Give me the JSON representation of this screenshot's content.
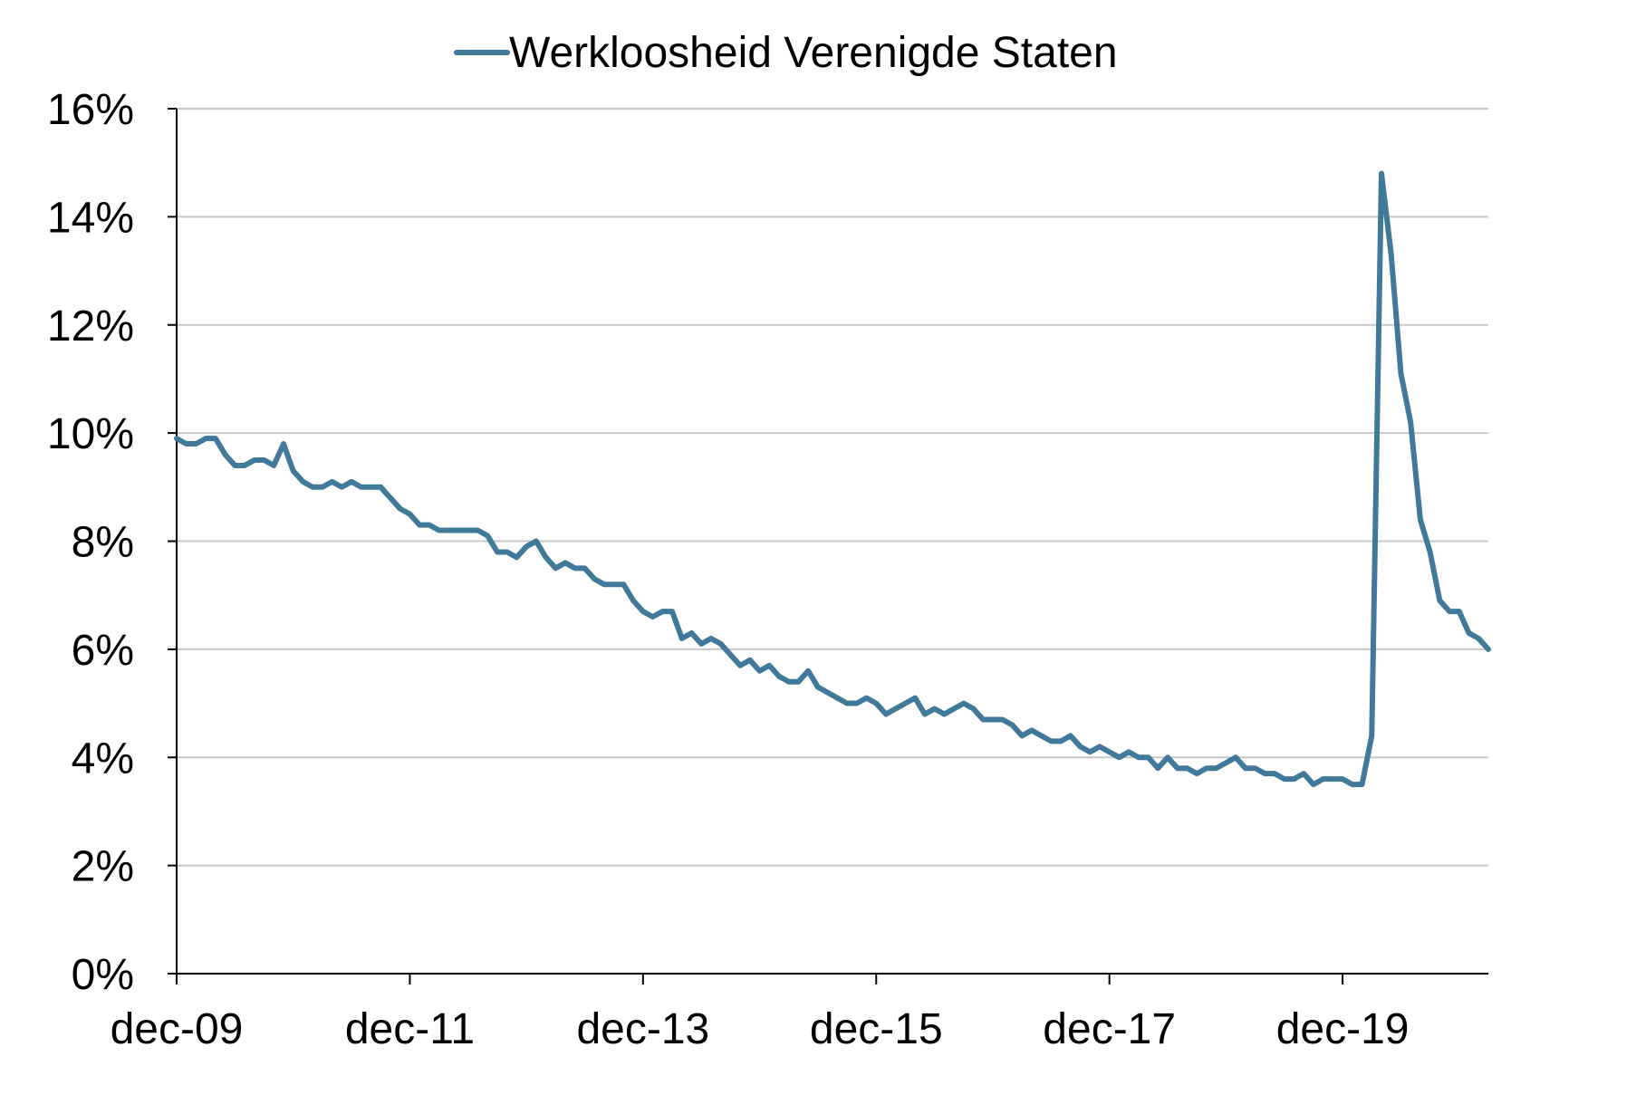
{
  "chart_data": {
    "type": "line",
    "title": "",
    "xlabel": "",
    "ylabel": "",
    "ylim": [
      0,
      16
    ],
    "y_ticks": [
      0,
      2,
      4,
      6,
      8,
      10,
      12,
      14,
      16
    ],
    "y_tick_labels": [
      "0%",
      "2%",
      "4%",
      "6%",
      "8%",
      "10%",
      "12%",
      "14%",
      "16%"
    ],
    "x_tick_labels": [
      "dec-09",
      "dec-11",
      "dec-13",
      "dec-15",
      "dec-17",
      "dec-19"
    ],
    "x_start": "dec-09",
    "x_end": "mei-21",
    "grid": true,
    "legend_position": "top-center",
    "series": [
      {
        "name": "Werkloosheid Verenigde Staten",
        "color": "#41799B",
        "values": [
          9.9,
          9.8,
          9.8,
          9.9,
          9.9,
          9.6,
          9.4,
          9.4,
          9.5,
          9.5,
          9.4,
          9.8,
          9.3,
          9.1,
          9.0,
          9.0,
          9.1,
          9.0,
          9.1,
          9.0,
          9.0,
          9.0,
          8.8,
          8.6,
          8.5,
          8.3,
          8.3,
          8.2,
          8.2,
          8.2,
          8.2,
          8.2,
          8.1,
          7.8,
          7.8,
          7.7,
          7.9,
          8.0,
          7.7,
          7.5,
          7.6,
          7.5,
          7.5,
          7.3,
          7.2,
          7.2,
          7.2,
          6.9,
          6.7,
          6.6,
          6.7,
          6.7,
          6.2,
          6.3,
          6.1,
          6.2,
          6.1,
          5.9,
          5.7,
          5.8,
          5.6,
          5.7,
          5.5,
          5.4,
          5.4,
          5.6,
          5.3,
          5.2,
          5.1,
          5.0,
          5.0,
          5.1,
          5.0,
          4.8,
          4.9,
          5.0,
          5.1,
          4.8,
          4.9,
          4.8,
          4.9,
          5.0,
          4.9,
          4.7,
          4.7,
          4.7,
          4.6,
          4.4,
          4.5,
          4.4,
          4.3,
          4.3,
          4.4,
          4.2,
          4.1,
          4.2,
          4.1,
          4.0,
          4.1,
          4.0,
          4.0,
          3.8,
          4.0,
          3.8,
          3.8,
          3.7,
          3.8,
          3.8,
          3.9,
          4.0,
          3.8,
          3.8,
          3.7,
          3.7,
          3.6,
          3.6,
          3.7,
          3.5,
          3.6,
          3.6,
          3.6,
          3.5,
          3.5,
          4.4,
          14.8,
          13.3,
          11.1,
          10.2,
          8.4,
          7.8,
          6.9,
          6.7,
          6.7,
          6.3,
          6.2,
          6.0
        ]
      }
    ]
  }
}
